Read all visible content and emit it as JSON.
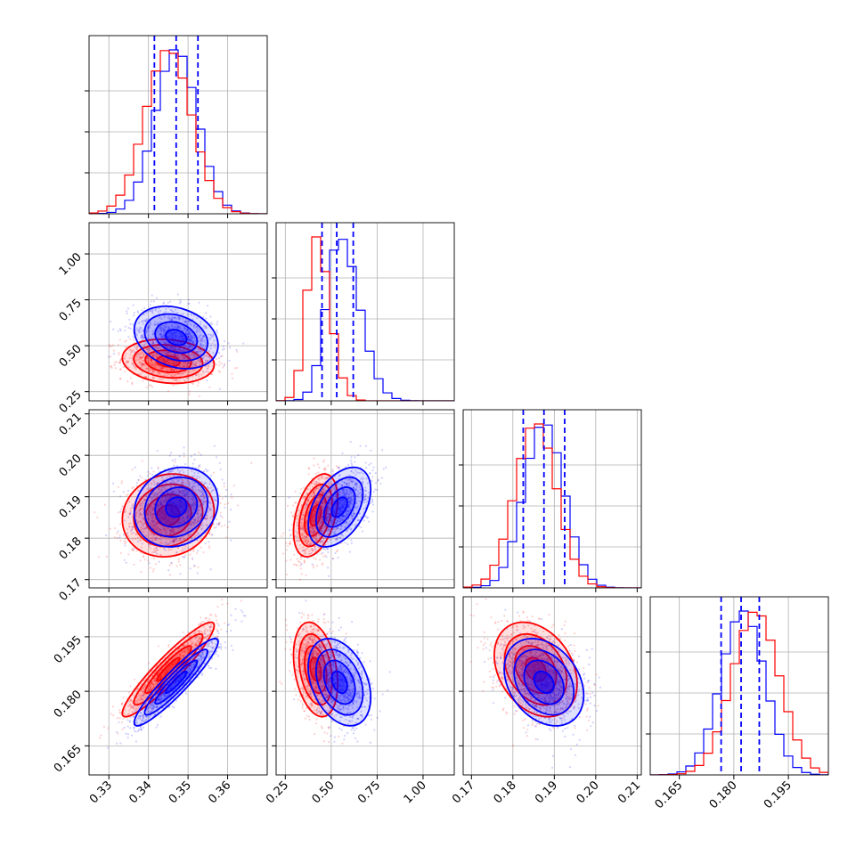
{
  "chart_data": {
    "type": "corner",
    "parameters": [
      {
        "ticks": [
          0.33,
          0.34,
          0.35,
          0.36
        ],
        "tick_labels": [
          "0.33",
          "0.34",
          "0.35",
          "0.36"
        ],
        "range": [
          0.325,
          0.37
        ]
      },
      {
        "ticks": [
          0.25,
          0.5,
          0.75,
          1.0
        ],
        "tick_labels": [
          "0.25",
          "0.50",
          "0.75",
          "1.00"
        ],
        "range": [
          0.2,
          1.17
        ]
      },
      {
        "ticks": [
          0.17,
          0.18,
          0.19,
          0.2,
          0.21
        ],
        "tick_labels": [
          "0.17",
          "0.18",
          "0.19",
          "0.20",
          "0.21"
        ],
        "range": [
          0.168,
          0.211
        ]
      },
      {
        "ticks": [
          0.165,
          0.18,
          0.195
        ],
        "tick_labels": [
          "0.165",
          "0.180",
          "0.195"
        ],
        "range": [
          0.157,
          0.206
        ]
      }
    ],
    "series": [
      {
        "color": "#0000ff",
        "means": [
          0.347,
          0.545,
          0.1875,
          0.1825
        ],
        "stds": [
          0.0053,
          0.085,
          0.0048,
          0.006
        ],
        "quantiles": [
          [
            0.3415,
            0.347,
            0.3525
          ],
          [
            0.45,
            0.53,
            0.62
          ],
          [
            0.1825,
            0.1875,
            0.1925
          ],
          [
            0.1765,
            0.182,
            0.187
          ]
        ],
        "correlations": [
          [
            0,
            1,
            -0.25
          ],
          [
            0,
            2,
            0.15
          ],
          [
            0,
            3,
            0.93
          ],
          [
            1,
            2,
            0.45
          ],
          [
            1,
            3,
            -0.35
          ],
          [
            2,
            3,
            -0.3
          ]
        ]
      },
      {
        "color": "#ff0000",
        "means": [
          0.345,
          0.415,
          0.1855,
          0.186
        ],
        "stds": [
          0.0058,
          0.06,
          0.005,
          0.0065
        ],
        "correlations": [
          [
            0,
            1,
            -0.15
          ],
          [
            0,
            2,
            0.1
          ],
          [
            0,
            3,
            0.93
          ],
          [
            1,
            2,
            0.4
          ],
          [
            1,
            3,
            -0.3
          ],
          [
            2,
            3,
            -0.3
          ]
        ]
      }
    ],
    "quantile_lines_color": "#0000ff",
    "grid": true
  }
}
